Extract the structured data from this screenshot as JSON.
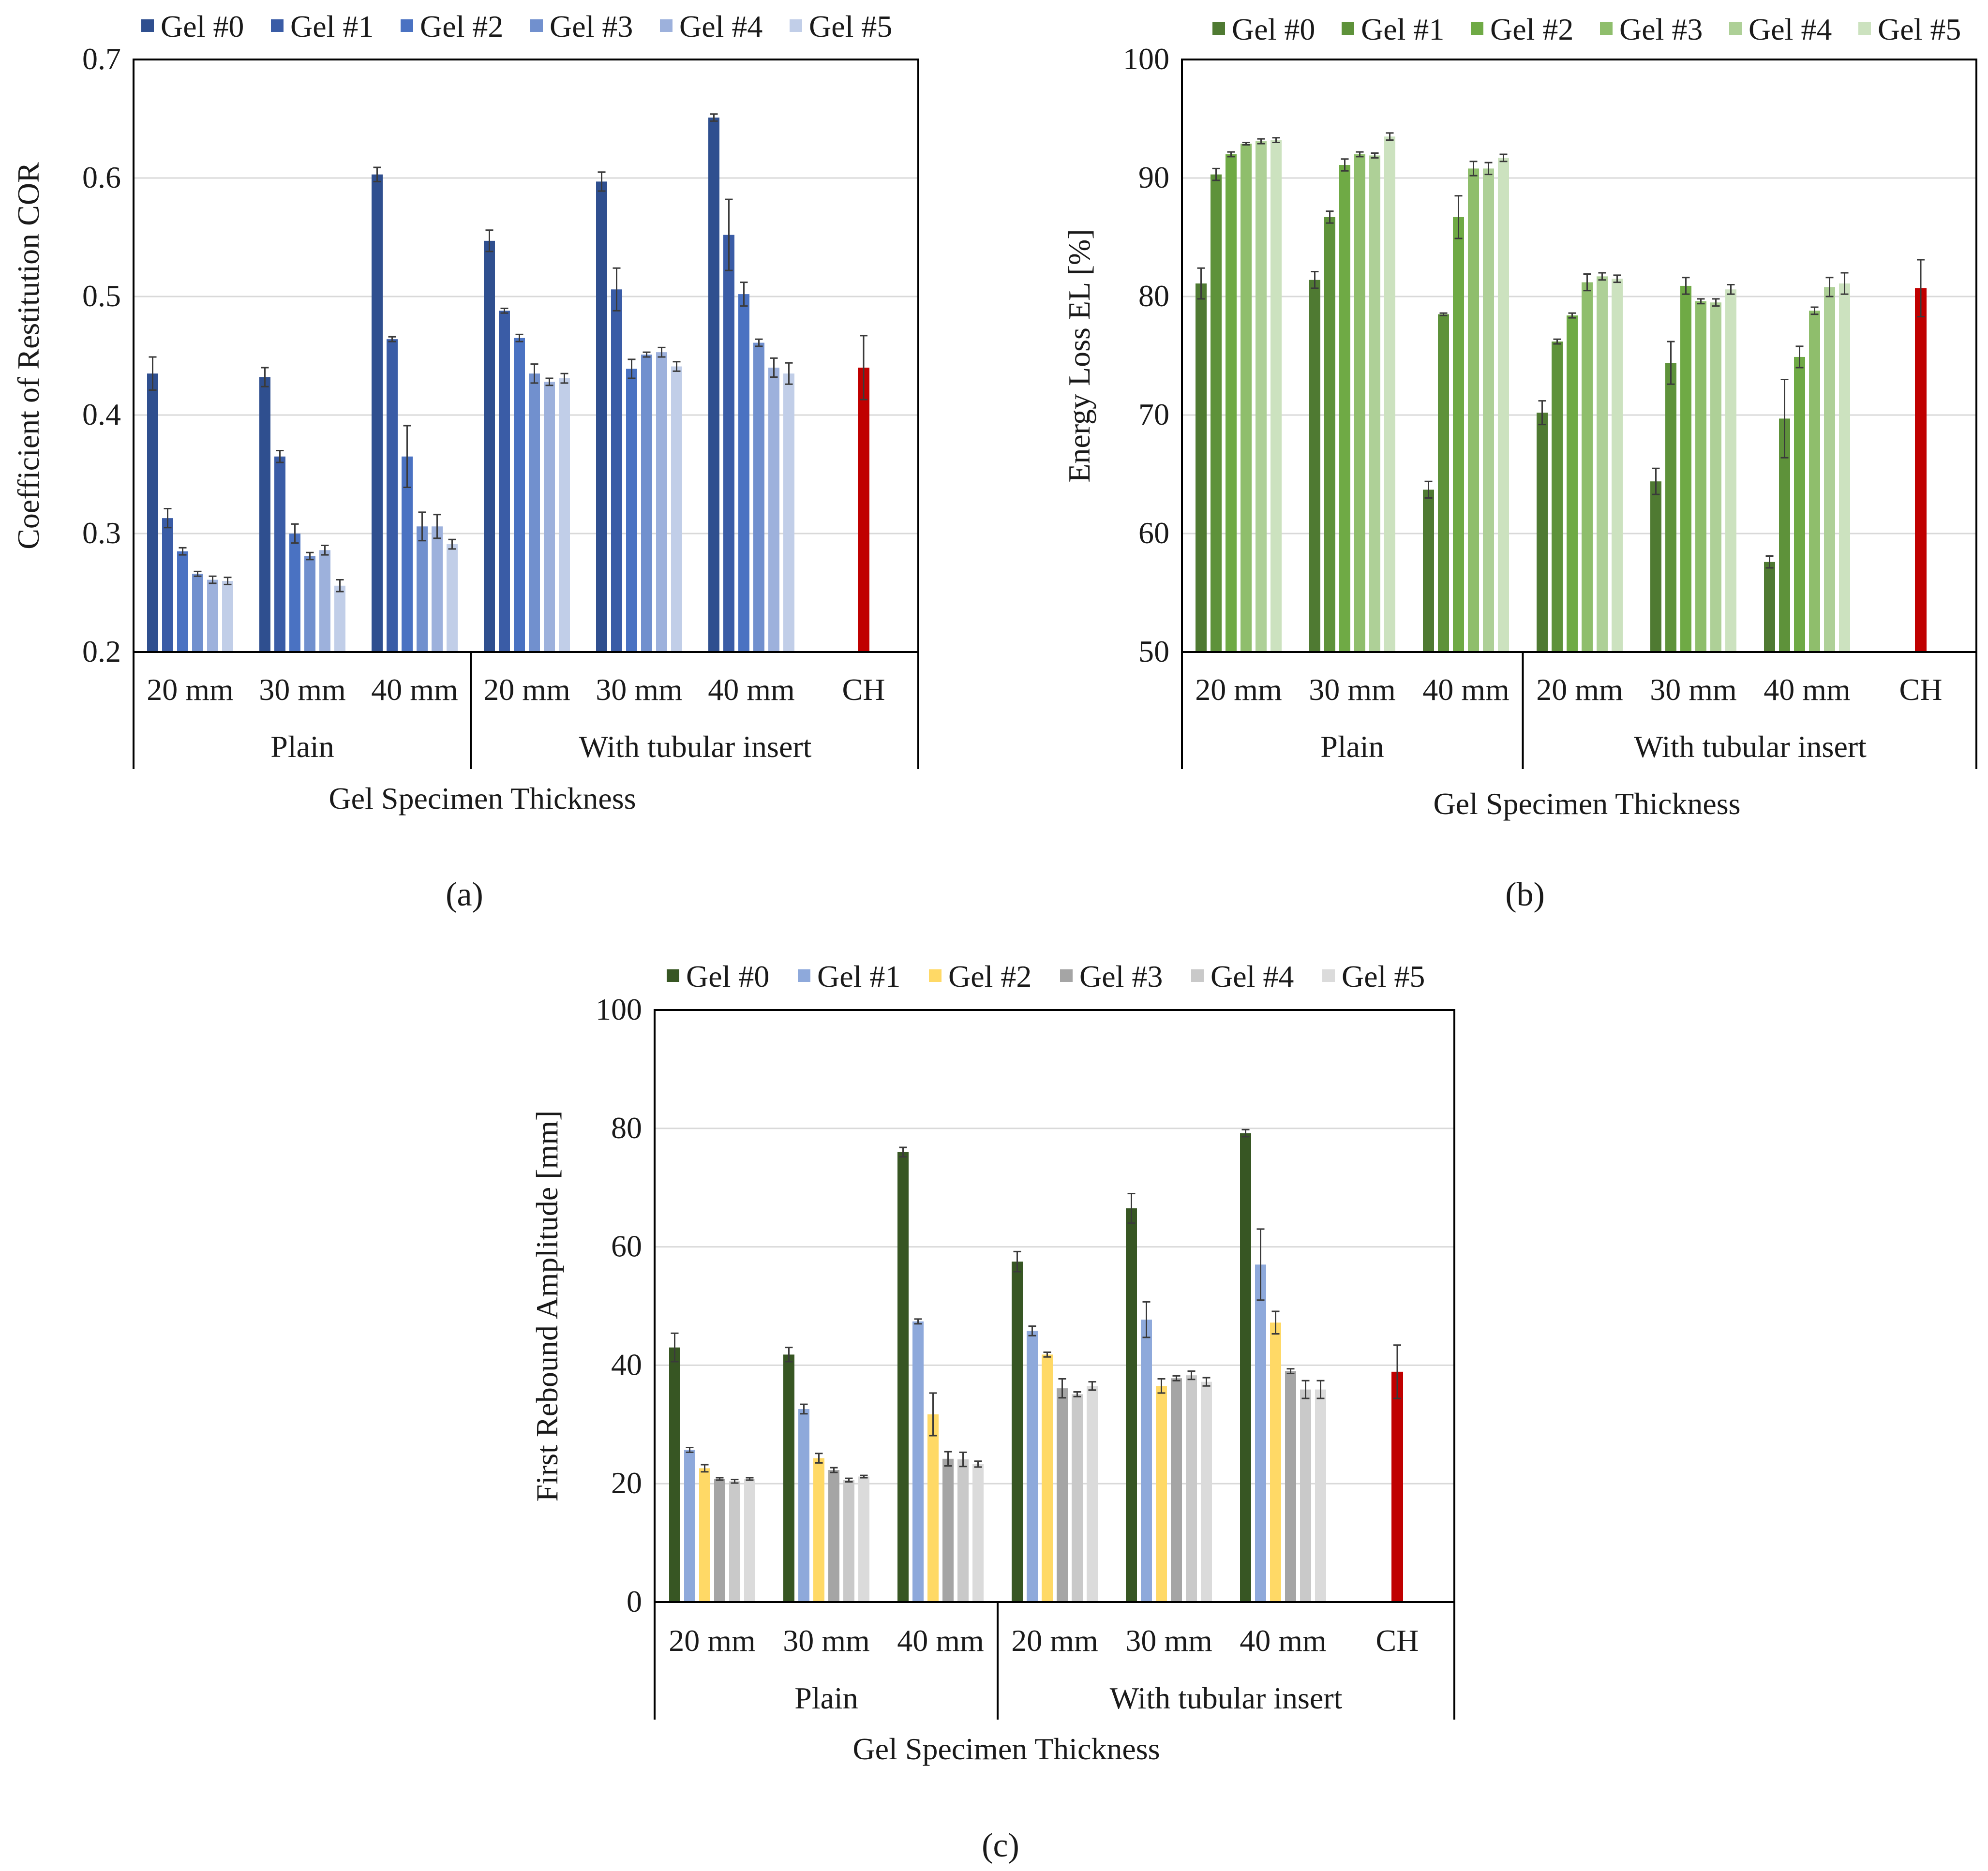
{
  "chart_data": [
    {
      "id": "a",
      "type": "bar",
      "panel_label": "(a)",
      "ylabel": "Coefficient of Restitution COR",
      "xlabel": "Gel Specimen Thickness",
      "ylim": [
        0.2,
        0.7
      ],
      "yticks": [
        "0.2",
        "0.3",
        "0.4",
        "0.5",
        "0.6",
        "0.7"
      ],
      "grid": true,
      "legend_position": "top",
      "categories": [
        "20 mm",
        "30 mm",
        "40 mm",
        "20 mm",
        "30 mm",
        "40 mm",
        "CH"
      ],
      "groups": [
        {
          "label": "Plain",
          "span": [
            0,
            3
          ]
        },
        {
          "label": "With tubular insert",
          "span": [
            3,
            7
          ]
        }
      ],
      "series": [
        {
          "name": "Gel #0",
          "color": "#2F4F8F",
          "values": [
            0.435,
            0.432,
            0.603,
            0.547,
            0.597,
            0.651,
            null
          ],
          "errors": [
            0.014,
            0.008,
            0.006,
            0.009,
            0.008,
            0.003,
            null
          ]
        },
        {
          "name": "Gel #1",
          "color": "#3A5CA6",
          "values": [
            0.313,
            0.365,
            0.464,
            0.488,
            0.506,
            0.552,
            null
          ],
          "errors": [
            0.008,
            0.005,
            0.002,
            0.002,
            0.018,
            0.03,
            null
          ]
        },
        {
          "name": "Gel #2",
          "color": "#4A72C2",
          "values": [
            0.285,
            0.3,
            0.365,
            0.465,
            0.439,
            0.502,
            null
          ],
          "errors": [
            0.003,
            0.008,
            0.026,
            0.003,
            0.008,
            0.01,
            null
          ]
        },
        {
          "name": "Gel #3",
          "color": "#7190CE",
          "values": [
            0.266,
            0.281,
            0.306,
            0.435,
            0.451,
            0.461,
            null
          ],
          "errors": [
            0.002,
            0.003,
            0.012,
            0.008,
            0.002,
            0.003,
            null
          ]
        },
        {
          "name": "Gel #4",
          "color": "#9DB1DC",
          "values": [
            0.261,
            0.286,
            0.306,
            0.428,
            0.453,
            0.44,
            null
          ],
          "errors": [
            0.003,
            0.004,
            0.01,
            0.003,
            0.004,
            0.008,
            null
          ]
        },
        {
          "name": "Gel #5",
          "color": "#C1CEE8",
          "values": [
            0.26,
            0.256,
            0.291,
            0.431,
            0.441,
            0.435,
            null
          ],
          "errors": [
            0.003,
            0.005,
            0.004,
            0.004,
            0.004,
            0.009,
            null
          ]
        }
      ],
      "reference": {
        "name": "CH",
        "color": "#C00000",
        "category_index": 6,
        "value": 0.44,
        "error": 0.027
      }
    },
    {
      "id": "b",
      "type": "bar",
      "panel_label": "(b)",
      "ylabel": "Energy Loss EL [%]",
      "xlabel": "Gel Specimen Thickness",
      "ylim": [
        50,
        100
      ],
      "yticks": [
        "50",
        "60",
        "70",
        "80",
        "90",
        "100"
      ],
      "grid": true,
      "legend_position": "top",
      "categories": [
        "20 mm",
        "30 mm",
        "40 mm",
        "20 mm",
        "30 mm",
        "40 mm",
        "CH"
      ],
      "groups": [
        {
          "label": "Plain",
          "span": [
            0,
            3
          ]
        },
        {
          "label": "With tubular insert",
          "span": [
            3,
            7
          ]
        }
      ],
      "series": [
        {
          "name": "Gel #0",
          "color": "#4F7A32",
          "values": [
            81.1,
            81.4,
            63.7,
            70.2,
            64.4,
            57.6,
            null
          ],
          "errors": [
            1.3,
            0.7,
            0.7,
            1.0,
            1.1,
            0.5,
            null
          ]
        },
        {
          "name": "Gel #1",
          "color": "#5E923A",
          "values": [
            90.3,
            86.7,
            78.5,
            76.2,
            74.4,
            69.7,
            null
          ],
          "errors": [
            0.5,
            0.5,
            0.1,
            0.2,
            1.8,
            3.3,
            null
          ]
        },
        {
          "name": "Gel #2",
          "color": "#6FAA45",
          "values": [
            92.0,
            91.1,
            86.7,
            78.4,
            80.9,
            74.9,
            null
          ],
          "errors": [
            0.2,
            0.5,
            1.8,
            0.2,
            0.7,
            0.9,
            null
          ]
        },
        {
          "name": "Gel #3",
          "color": "#8FBE6C",
          "values": [
            92.9,
            92.0,
            90.8,
            81.2,
            79.6,
            78.8,
            null
          ],
          "errors": [
            0.1,
            0.2,
            0.6,
            0.7,
            0.2,
            0.3,
            null
          ]
        },
        {
          "name": "Gel #4",
          "color": "#AED097",
          "values": [
            93.1,
            91.9,
            90.8,
            81.7,
            79.5,
            80.8,
            null
          ],
          "errors": [
            0.2,
            0.2,
            0.5,
            0.3,
            0.3,
            0.8,
            null
          ]
        },
        {
          "name": "Gel #5",
          "color": "#CCE2BF",
          "values": [
            93.2,
            93.5,
            91.7,
            81.5,
            80.6,
            81.1,
            null
          ],
          "errors": [
            0.2,
            0.3,
            0.3,
            0.3,
            0.4,
            0.9,
            null
          ]
        }
      ],
      "reference": {
        "name": "CH",
        "color": "#C00000",
        "category_index": 6,
        "value": 80.7,
        "error": 2.4
      }
    },
    {
      "id": "c",
      "type": "bar",
      "panel_label": "(c)",
      "ylabel": "First Rebound Amplitude [mm]",
      "xlabel": "Gel Specimen Thickness",
      "ylim": [
        0,
        100
      ],
      "yticks": [
        "0",
        "20",
        "40",
        "60",
        "80",
        "100"
      ],
      "grid": true,
      "legend_position": "top",
      "categories": [
        "20 mm",
        "30 mm",
        "40 mm",
        "20 mm",
        "30 mm",
        "40 mm",
        "CH"
      ],
      "groups": [
        {
          "label": "Plain",
          "span": [
            0,
            3
          ]
        },
        {
          "label": "With tubular insert",
          "span": [
            3,
            7
          ]
        }
      ],
      "series": [
        {
          "name": "Gel #0",
          "color": "#375623",
          "values": [
            43.0,
            41.8,
            76.0,
            57.5,
            66.5,
            79.2,
            null
          ],
          "errors": [
            2.4,
            1.2,
            0.8,
            1.7,
            2.5,
            0.6,
            null
          ]
        },
        {
          "name": "Gel #1",
          "color": "#8EA9DB",
          "values": [
            25.7,
            32.6,
            47.4,
            45.8,
            47.7,
            57.0,
            null
          ],
          "errors": [
            0.4,
            0.8,
            0.4,
            0.8,
            3.0,
            6.0,
            null
          ]
        },
        {
          "name": "Gel #2",
          "color": "#FFD966",
          "values": [
            22.6,
            24.3,
            31.7,
            41.8,
            36.5,
            47.2,
            null
          ],
          "errors": [
            0.6,
            0.8,
            3.6,
            0.4,
            1.2,
            1.9,
            null
          ]
        },
        {
          "name": "Gel #3",
          "color": "#A5A5A5",
          "values": [
            20.8,
            22.3,
            24.2,
            36.1,
            37.8,
            39.0,
            null
          ],
          "errors": [
            0.2,
            0.4,
            1.2,
            1.6,
            0.4,
            0.4,
            null
          ]
        },
        {
          "name": "Gel #4",
          "color": "#C9C9C9",
          "values": [
            20.4,
            20.6,
            24.1,
            35.1,
            38.3,
            35.9,
            null
          ],
          "errors": [
            0.3,
            0.3,
            1.2,
            0.4,
            0.7,
            1.5,
            null
          ]
        },
        {
          "name": "Gel #5",
          "color": "#DBDBDB",
          "values": [
            20.8,
            21.2,
            23.3,
            36.5,
            37.2,
            35.9,
            null
          ],
          "errors": [
            0.2,
            0.2,
            0.5,
            0.7,
            0.7,
            1.5,
            null
          ]
        }
      ],
      "reference": {
        "name": "CH",
        "color": "#C00000",
        "category_index": 6,
        "value": 38.9,
        "error": 4.5
      }
    }
  ]
}
